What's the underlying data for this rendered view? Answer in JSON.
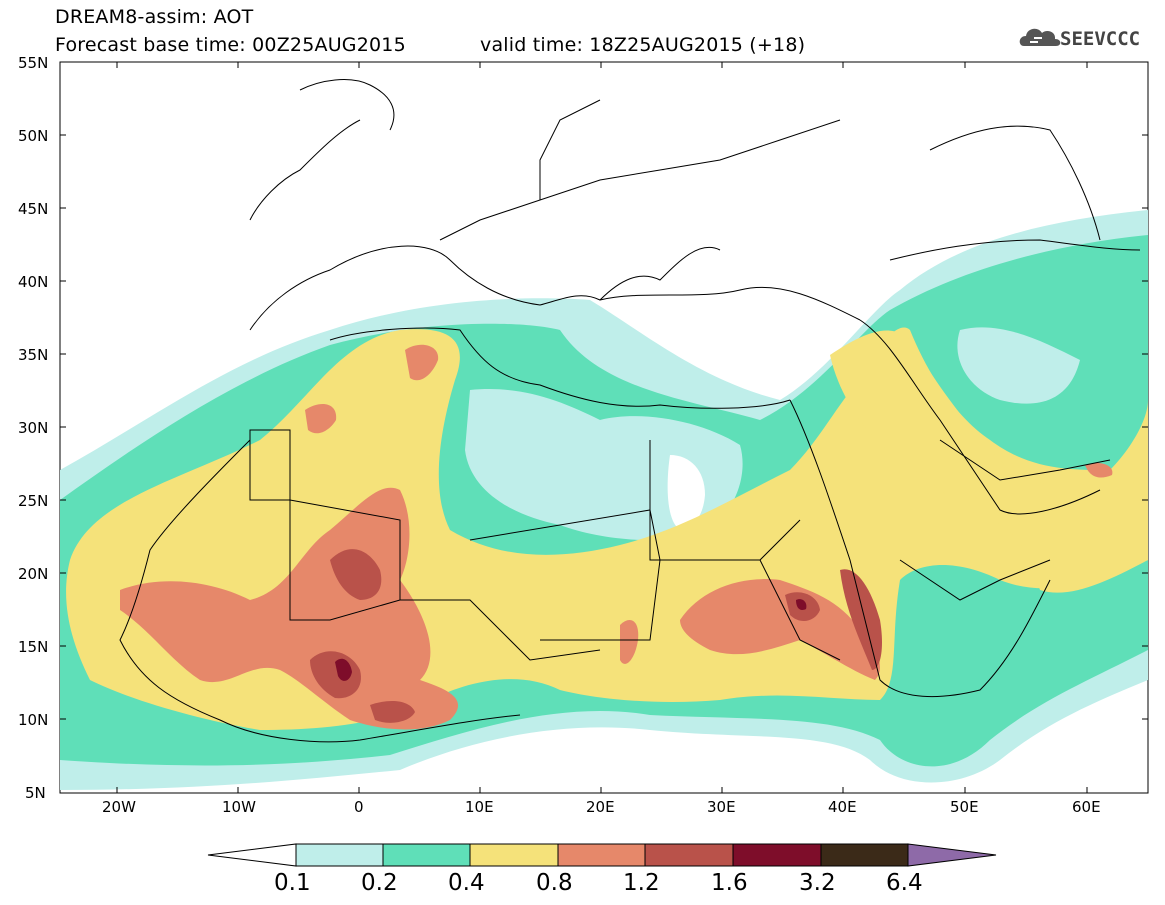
{
  "title": {
    "line1": "DREAM8-assim: AOT",
    "line2": "Forecast base time: 00Z25AUG2015",
    "valid": "valid time: 18Z25AUG2015 (+18)"
  },
  "logo": {
    "text": "SEEVCCC",
    "icon": "cloud-icon"
  },
  "axes": {
    "lon_ticks": [
      "20W",
      "10W",
      "0",
      "10E",
      "20E",
      "30E",
      "40E",
      "50E",
      "60E"
    ],
    "lat_ticks": [
      "55N",
      "50N",
      "45N",
      "40N",
      "35N",
      "30N",
      "25N",
      "20N",
      "15N",
      "10N",
      "5N"
    ],
    "lon_range": [
      -25,
      65
    ],
    "lat_range": [
      5,
      55
    ]
  },
  "legend": {
    "labels": [
      "0.1",
      "0.2",
      "0.4",
      "0.8",
      "1.2",
      "1.6",
      "3.2",
      "6.4"
    ],
    "colors": [
      "#bfeeea",
      "#5fdfb8",
      "#f5e27a",
      "#e6886a",
      "#b9524a",
      "#7e0d2a",
      "#3b2a18",
      "#8e6aa8"
    ]
  }
}
